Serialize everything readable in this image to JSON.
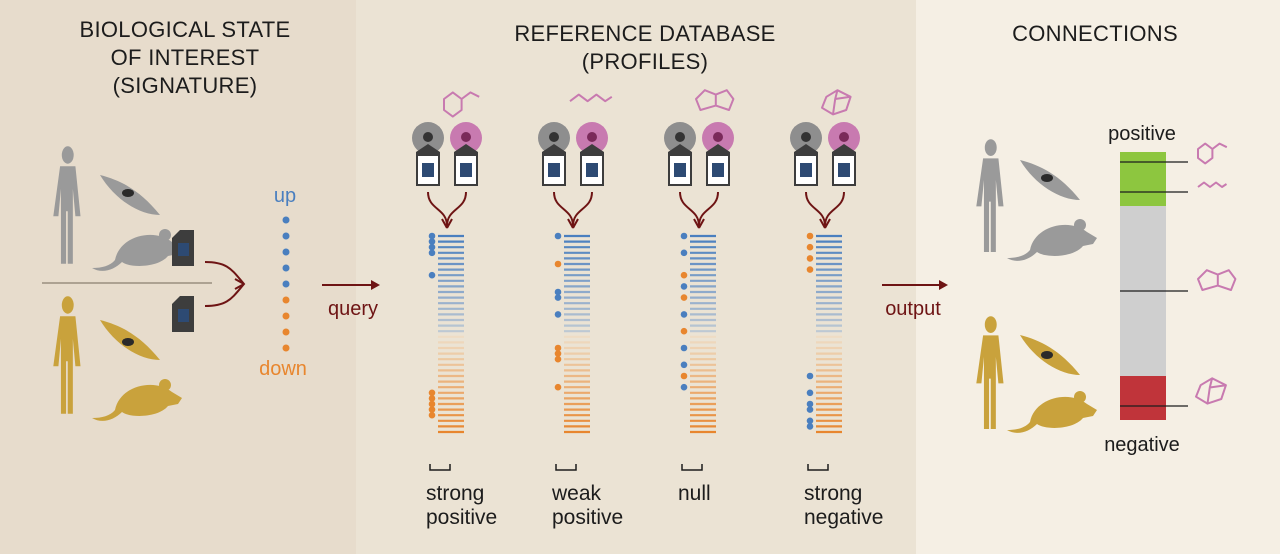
{
  "headings": {
    "left": "BIOLOGICAL STATE\nOF INTEREST\n(SIGNATURE)",
    "middle": "REFERENCE DATABASE\n(PROFILES)",
    "right": "CONNECTIONS"
  },
  "signature": {
    "up_label": "up",
    "down_label": "down"
  },
  "arrows": {
    "query_label": "query",
    "output_label": "output"
  },
  "profiles": [
    {
      "label": "strong\npositive"
    },
    {
      "label": "weak\npositive"
    },
    {
      "label": "null"
    },
    {
      "label": "strong\nnegative"
    }
  ],
  "connections": {
    "positive_label": "positive",
    "negative_label": "negative"
  },
  "colors": {
    "up": "#4a7fbf",
    "down": "#e8862e",
    "arrow": "#6e1414",
    "positive_bar": "#8dc63f",
    "neutral_bar": "#cfcfcf",
    "negative_bar": "#c0343a",
    "compound": "#c87ab0",
    "silhouette_gray": "#9a9a9a",
    "silhouette_gold": "#c9a23c"
  }
}
